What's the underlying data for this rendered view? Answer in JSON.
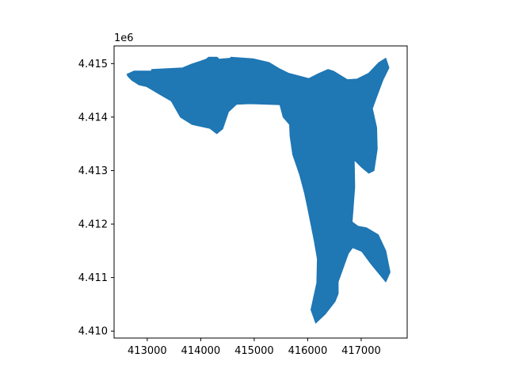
{
  "chart_data": {
    "type": "area",
    "title": "",
    "xlabel": "",
    "ylabel": "",
    "grid": false,
    "legend": "none",
    "fill_color": "#1f77b4",
    "edge_color": "#1f77b4",
    "xlim": [
      412380,
      417860
    ],
    "ylim": [
      4409870000,
      4415330000
    ],
    "y_offset_label": "1e6",
    "x_ticks": [
      413000,
      414000,
      415000,
      416000,
      417000
    ],
    "x_tick_labels": [
      "413000",
      "414000",
      "415000",
      "416000",
      "417000"
    ],
    "y_ticks": [
      4410000000,
      4411000000,
      4412000000,
      4413000000,
      4414000000,
      4415000000
    ],
    "y_tick_labels": [
      "4.410",
      "4.411",
      "4.412",
      "4.413",
      "4.414",
      "4.415"
    ],
    "series": [
      {
        "polygon_x": [
          412620,
          412750,
          413080,
          413080,
          413660,
          413830,
          414100,
          414150,
          414300,
          414330,
          414320,
          414560,
          414560,
          414980,
          415280,
          415460,
          415640,
          416020,
          416200,
          416380,
          416480,
          416740,
          416920,
          417140,
          417330,
          417460,
          417520,
          417410,
          417290,
          417210,
          417290,
          417300,
          417240,
          417140,
          417010,
          416870,
          416880,
          416830,
          416940,
          417100,
          417320,
          417460,
          417540,
          417460,
          417180,
          417010,
          416840,
          416760,
          416570,
          416570,
          416510,
          416330,
          416150,
          416060,
          416170,
          416180,
          416120,
          416000,
          415940,
          415850,
          415720,
          415670,
          415660,
          415540,
          415480,
          414920,
          414670,
          414520,
          414410,
          414300,
          414170,
          413840,
          413620,
          413450,
          413240,
          412990,
          412850,
          412710,
          412640
        ],
        "polygon_y": [
          4414800000,
          4414860000,
          4414860000,
          4414890000,
          4414920000,
          4414990000,
          4415080000,
          4415120000,
          4415120000,
          4415100000,
          4415080000,
          4415100000,
          4415120000,
          4415090000,
          4415020000,
          4414910000,
          4414820000,
          4414720000,
          4414810000,
          4414890000,
          4414860000,
          4414700000,
          4414710000,
          4414820000,
          4415020000,
          4415100000,
          4414920000,
          4414700000,
          4414380000,
          4414160000,
          4413800000,
          4413400000,
          4413000000,
          4412950000,
          4413060000,
          4413200000,
          4412690000,
          4412040000,
          4411960000,
          4411930000,
          4411800000,
          4411500000,
          4411100000,
          4410920000,
          4411260000,
          4411490000,
          4411560000,
          4411450000,
          4410920000,
          4410700000,
          4410550000,
          4410320000,
          4410150000,
          4410400000,
          4410900000,
          4411350000,
          4411700000,
          4412300000,
          4412580000,
          4412920000,
          4413300000,
          4413650000,
          4413860000,
          4414000000,
          4414230000,
          4414250000,
          4414240000,
          4414100000,
          4413780000,
          4413690000,
          4413790000,
          4413860000,
          4414000000,
          4414300000,
          4414420000,
          4414570000,
          4414600000,
          4414690000,
          4414760000
        ]
      }
    ]
  }
}
